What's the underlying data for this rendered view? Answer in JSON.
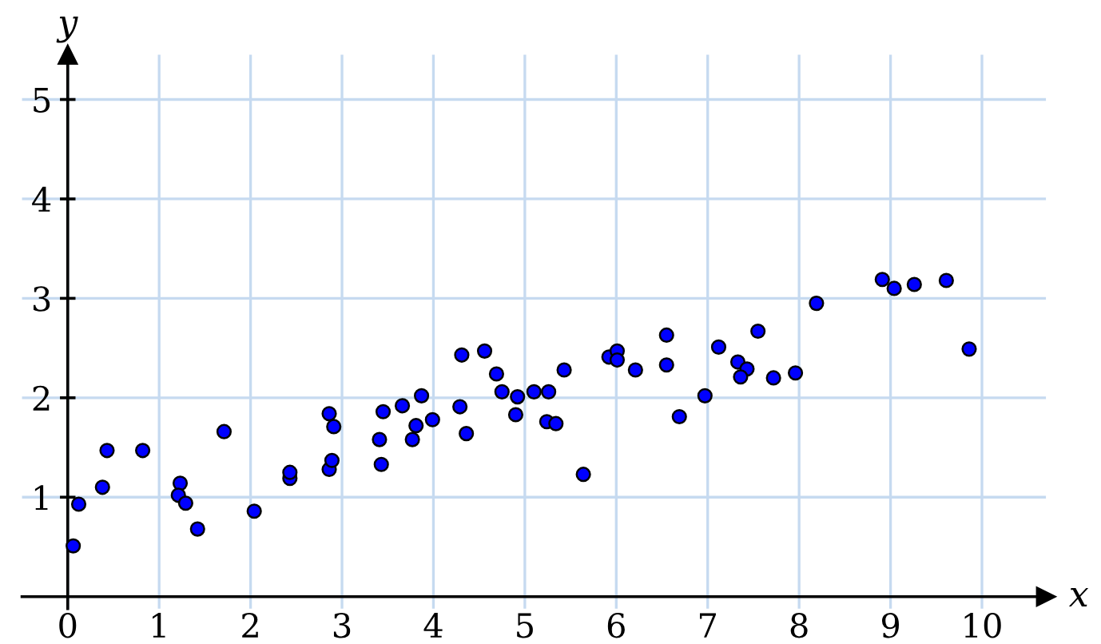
{
  "chart_data": {
    "type": "scatter",
    "xlabel": "x",
    "ylabel": "y",
    "xlim": [
      -0.5,
      10.7
    ],
    "ylim": [
      -0.12,
      5.45
    ],
    "xticks": [
      {
        "value": 0,
        "label": "0"
      },
      1,
      2,
      3,
      4,
      5,
      6,
      7,
      8,
      9,
      10
    ],
    "yticks": [
      1,
      2,
      3,
      4,
      5
    ],
    "grid": true,
    "marker": "circle",
    "series": [
      {
        "color": "#0000ff",
        "x": [
          0.06,
          0.12,
          0.38,
          0.43,
          0.82,
          1.23,
          1.21,
          1.29,
          1.42,
          1.71,
          2.04,
          2.43,
          2.43,
          2.86,
          2.91,
          2.86,
          2.89,
          3.45,
          3.41,
          3.43,
          3.66,
          3.87,
          3.81,
          3.77,
          3.99,
          4.29,
          4.31,
          4.36,
          4.56,
          4.69,
          4.75,
          4.92,
          4.9,
          5.1,
          5.26,
          5.24,
          5.34,
          5.43,
          5.64,
          5.92,
          6.01,
          6.01,
          6.21,
          6.55,
          6.55,
          6.69,
          6.97,
          7.12,
          7.55,
          7.33,
          7.43,
          7.36,
          7.72,
          7.96,
          8.19,
          8.91,
          9.04,
          9.26,
          9.61,
          9.86
        ],
        "values": [
          0.51,
          0.93,
          1.1,
          1.47,
          1.47,
          1.14,
          1.02,
          0.94,
          0.68,
          1.66,
          0.86,
          1.19,
          1.25,
          1.84,
          1.71,
          1.28,
          1.37,
          1.86,
          1.58,
          1.33,
          1.92,
          2.02,
          1.72,
          1.58,
          1.78,
          1.91,
          2.43,
          1.64,
          2.47,
          2.24,
          2.06,
          2.01,
          1.83,
          2.06,
          2.06,
          1.76,
          1.74,
          2.28,
          1.23,
          2.41,
          2.47,
          2.38,
          2.28,
          2.63,
          2.33,
          1.81,
          2.02,
          2.51,
          2.67,
          2.36,
          2.29,
          2.21,
          2.2,
          2.25,
          2.95,
          3.19,
          3.1,
          3.14,
          3.18,
          2.49
        ]
      }
    ]
  }
}
